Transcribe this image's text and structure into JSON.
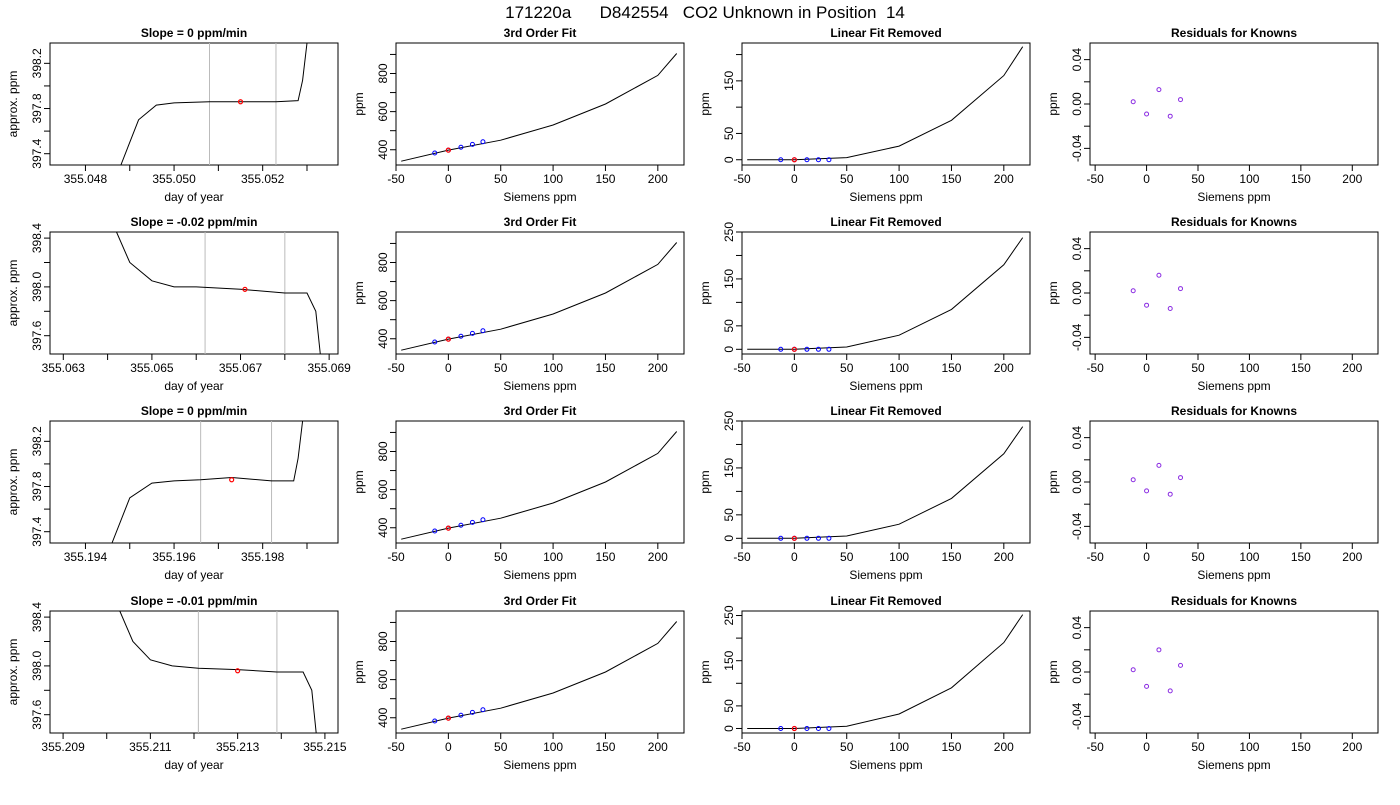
{
  "title": "171220a      D842554   CO2 Unknown in Position  14",
  "chart_data": [
    {
      "type": "line",
      "panel": "trace",
      "title": "Slope =  0  ppm/min",
      "xlabel": "day of year",
      "ylabel": "approx. ppm",
      "xlim": [
        355.0472,
        355.0537
      ],
      "ylim": [
        397.3,
        398.38
      ],
      "xticks": [
        355.048,
        355.049,
        355.05,
        355.051,
        355.052,
        355.053
      ],
      "xticklabels": [
        "355.048",
        "",
        "355.050",
        "",
        "355.052",
        ""
      ],
      "yticks": [
        397.4,
        397.6,
        397.8,
        398.0,
        398.2
      ],
      "yticklabels": [
        "397.4",
        "",
        "397.8",
        "",
        "398.2"
      ],
      "vlines": [
        355.0508,
        355.0523
      ],
      "series": [
        {
          "x": [
            355.0488,
            355.0492,
            355.0496,
            355.05,
            355.0508,
            355.0515,
            355.0523,
            355.0528,
            355.0529,
            355.053
          ],
          "y": [
            397.3,
            397.7,
            397.83,
            397.85,
            397.86,
            397.86,
            397.86,
            397.87,
            398.05,
            398.38
          ]
        }
      ],
      "marker": {
        "x": 355.0515,
        "y": 397.86,
        "color": "#ff0000"
      }
    },
    {
      "type": "line",
      "panel": "fit",
      "title": "3rd Order Fit",
      "xlabel": "Siemens ppm",
      "ylabel": "ppm",
      "xlim": [
        -50,
        225
      ],
      "ylim": [
        320,
        960
      ],
      "xticks": [
        -50,
        0,
        50,
        100,
        150,
        200
      ],
      "yticks": [
        400,
        500,
        600,
        700,
        800,
        900
      ],
      "yticklabels": [
        "400",
        "",
        "600",
        "",
        "800",
        ""
      ],
      "curve": {
        "x": [
          -45,
          0,
          50,
          100,
          150,
          200,
          218
        ],
        "y": [
          340,
          398,
          450,
          530,
          640,
          790,
          905
        ]
      },
      "points": {
        "x": [
          -13,
          0,
          12,
          23,
          33
        ],
        "y": [
          383,
          398,
          413,
          428,
          442
        ],
        "color": "#0000ff"
      },
      "marker": {
        "x": 0,
        "y": 398,
        "color": "#ff0000"
      }
    },
    {
      "type": "line",
      "panel": "linear-removed",
      "title": "Linear Fit Removed",
      "xlabel": "Siemens ppm",
      "ylabel": "ppm",
      "xlim": [
        -50,
        225
      ],
      "ylim": [
        -10,
        222
      ],
      "xticks": [
        -50,
        0,
        50,
        100,
        150,
        200
      ],
      "yticks": [
        0,
        50,
        100,
        150,
        200
      ],
      "yticklabels": [
        "0",
        "50",
        "",
        "150",
        ""
      ],
      "curve": {
        "x": [
          -45,
          0,
          50,
          100,
          150,
          200,
          218
        ],
        "y": [
          0,
          0,
          4,
          26,
          75,
          160,
          215
        ]
      },
      "points": {
        "x": [
          -13,
          0,
          12,
          23,
          33
        ],
        "y": [
          0,
          0,
          0,
          0,
          0
        ],
        "color": "#0000ff"
      },
      "marker": {
        "x": 0,
        "y": 0,
        "color": "#ff0000"
      }
    },
    {
      "type": "scatter",
      "panel": "residuals",
      "title": "Residuals for Knowns",
      "xlabel": "Siemens ppm",
      "ylabel": "ppm",
      "xlim": [
        -55,
        225
      ],
      "ylim": [
        -0.055,
        0.055
      ],
      "xticks": [
        -50,
        0,
        50,
        100,
        150,
        200
      ],
      "yticks": [
        -0.04,
        -0.02,
        0.0,
        0.02,
        0.04
      ],
      "yticklabels": [
        "-0.04",
        "",
        "0.00",
        "",
        "0.04"
      ],
      "points": {
        "x": [
          -13,
          0,
          12,
          23,
          33
        ],
        "y": [
          0.002,
          -0.009,
          0.013,
          -0.011,
          0.004
        ],
        "color": "#8a2be2"
      }
    },
    {
      "type": "line",
      "panel": "trace",
      "title": "Slope =  -0.02  ppm/min",
      "xlabel": "day of year",
      "ylabel": "approx. ppm",
      "xlim": [
        355.0627,
        355.0692
      ],
      "ylim": [
        397.45,
        398.45
      ],
      "xticks": [
        355.063,
        355.064,
        355.065,
        355.066,
        355.067,
        355.068,
        355.069
      ],
      "xticklabels": [
        "355.063",
        "",
        "355.065",
        "",
        "355.067",
        "",
        "355.069"
      ],
      "yticks": [
        397.6,
        397.8,
        398.0,
        398.2,
        398.4
      ],
      "yticklabels": [
        "397.6",
        "",
        "398.0",
        "",
        "398.4"
      ],
      "vlines": [
        355.0662,
        355.068
      ],
      "series": [
        {
          "x": [
            355.0642,
            355.0645,
            355.065,
            355.0655,
            355.066,
            355.067,
            355.068,
            355.0685,
            355.0687,
            355.0688
          ],
          "y": [
            398.45,
            398.2,
            398.05,
            398.0,
            398.0,
            397.98,
            397.95,
            397.95,
            397.8,
            397.45
          ]
        }
      ],
      "marker": {
        "x": 355.0671,
        "y": 397.98,
        "color": "#ff0000"
      }
    },
    {
      "type": "line",
      "panel": "fit",
      "title": "3rd Order Fit",
      "xlabel": "Siemens ppm",
      "ylabel": "ppm",
      "xlim": [
        -50,
        225
      ],
      "ylim": [
        320,
        960
      ],
      "xticks": [
        -50,
        0,
        50,
        100,
        150,
        200
      ],
      "yticks": [
        400,
        500,
        600,
        700,
        800,
        900
      ],
      "yticklabels": [
        "400",
        "",
        "600",
        "",
        "800",
        ""
      ],
      "curve": {
        "x": [
          -45,
          0,
          50,
          100,
          150,
          200,
          218
        ],
        "y": [
          340,
          398,
          450,
          530,
          640,
          790,
          905
        ]
      },
      "points": {
        "x": [
          -13,
          0,
          12,
          23,
          33
        ],
        "y": [
          383,
          398,
          413,
          428,
          442
        ],
        "color": "#0000ff"
      },
      "marker": {
        "x": 0,
        "y": 398,
        "color": "#ff0000"
      }
    },
    {
      "type": "line",
      "panel": "linear-removed",
      "title": "Linear Fit Removed",
      "xlabel": "Siemens ppm",
      "ylabel": "ppm",
      "xlim": [
        -50,
        225
      ],
      "ylim": [
        -10,
        250
      ],
      "xticks": [
        -50,
        0,
        50,
        100,
        150,
        200
      ],
      "yticks": [
        0,
        50,
        100,
        150,
        200,
        250
      ],
      "yticklabels": [
        "0",
        "50",
        "",
        "150",
        "",
        "250"
      ],
      "curve": {
        "x": [
          -45,
          0,
          50,
          100,
          150,
          200,
          218
        ],
        "y": [
          0,
          0,
          5,
          30,
          85,
          180,
          238
        ]
      },
      "points": {
        "x": [
          -13,
          0,
          12,
          23,
          33
        ],
        "y": [
          0,
          0,
          0,
          0,
          0
        ],
        "color": "#0000ff"
      },
      "marker": {
        "x": 0,
        "y": 0,
        "color": "#ff0000"
      }
    },
    {
      "type": "scatter",
      "panel": "residuals",
      "title": "Residuals for Knowns",
      "xlabel": "Siemens ppm",
      "ylabel": "ppm",
      "xlim": [
        -55,
        225
      ],
      "ylim": [
        -0.055,
        0.055
      ],
      "xticks": [
        -50,
        0,
        50,
        100,
        150,
        200
      ],
      "yticks": [
        -0.04,
        -0.02,
        0.0,
        0.02,
        0.04
      ],
      "yticklabels": [
        "-0.04",
        "",
        "0.00",
        "",
        "0.04"
      ],
      "points": {
        "x": [
          -13,
          0,
          12,
          23,
          33
        ],
        "y": [
          0.002,
          -0.011,
          0.016,
          -0.014,
          0.004
        ],
        "color": "#8a2be2"
      }
    },
    {
      "type": "line",
      "panel": "trace",
      "title": "Slope =  0  ppm/min",
      "xlabel": "day of year",
      "ylabel": "approx. ppm",
      "xlim": [
        355.1932,
        355.1997
      ],
      "ylim": [
        397.3,
        398.38
      ],
      "xticks": [
        355.194,
        355.195,
        355.196,
        355.197,
        355.198,
        355.199
      ],
      "xticklabels": [
        "355.194",
        "",
        "355.196",
        "",
        "355.198",
        ""
      ],
      "yticks": [
        397.4,
        397.6,
        397.8,
        398.0,
        398.2
      ],
      "yticklabels": [
        "397.4",
        "",
        "397.8",
        "",
        "398.2"
      ],
      "vlines": [
        355.1966,
        355.1982
      ],
      "series": [
        {
          "x": [
            355.1946,
            355.195,
            355.1955,
            355.196,
            355.1966,
            355.1973,
            355.1982,
            355.1987,
            355.1988,
            355.1989
          ],
          "y": [
            397.3,
            397.7,
            397.83,
            397.85,
            397.86,
            397.88,
            397.85,
            397.85,
            398.05,
            398.38
          ]
        }
      ],
      "marker": {
        "x": 355.1973,
        "y": 397.86,
        "color": "#ff0000"
      }
    },
    {
      "type": "line",
      "panel": "fit",
      "title": "3rd Order Fit",
      "xlabel": "Siemens ppm",
      "ylabel": "ppm",
      "xlim": [
        -50,
        225
      ],
      "ylim": [
        320,
        960
      ],
      "xticks": [
        -50,
        0,
        50,
        100,
        150,
        200
      ],
      "yticks": [
        400,
        500,
        600,
        700,
        800,
        900
      ],
      "yticklabels": [
        "400",
        "",
        "600",
        "",
        "800",
        ""
      ],
      "curve": {
        "x": [
          -45,
          0,
          50,
          100,
          150,
          200,
          218
        ],
        "y": [
          340,
          398,
          450,
          530,
          640,
          790,
          905
        ]
      },
      "points": {
        "x": [
          -13,
          0,
          12,
          23,
          33
        ],
        "y": [
          383,
          398,
          413,
          428,
          442
        ],
        "color": "#0000ff"
      },
      "marker": {
        "x": 0,
        "y": 398,
        "color": "#ff0000"
      }
    },
    {
      "type": "line",
      "panel": "linear-removed",
      "title": "Linear Fit Removed",
      "xlabel": "Siemens ppm",
      "ylabel": "ppm",
      "xlim": [
        -50,
        225
      ],
      "ylim": [
        -10,
        250
      ],
      "xticks": [
        -50,
        0,
        50,
        100,
        150,
        200
      ],
      "yticks": [
        0,
        50,
        100,
        150,
        200,
        250
      ],
      "yticklabels": [
        "0",
        "50",
        "",
        "150",
        "",
        "250"
      ],
      "curve": {
        "x": [
          -45,
          0,
          50,
          100,
          150,
          200,
          218
        ],
        "y": [
          0,
          0,
          5,
          30,
          85,
          180,
          238
        ]
      },
      "points": {
        "x": [
          -13,
          0,
          12,
          23,
          33
        ],
        "y": [
          0,
          0,
          0,
          0,
          0
        ],
        "color": "#0000ff"
      },
      "marker": {
        "x": 0,
        "y": 0,
        "color": "#ff0000"
      }
    },
    {
      "type": "scatter",
      "panel": "residuals",
      "title": "Residuals for Knowns",
      "xlabel": "Siemens ppm",
      "ylabel": "ppm",
      "xlim": [
        -55,
        225
      ],
      "ylim": [
        -0.055,
        0.055
      ],
      "xticks": [
        -50,
        0,
        50,
        100,
        150,
        200
      ],
      "yticks": [
        -0.04,
        -0.02,
        0.0,
        0.02,
        0.04
      ],
      "yticklabels": [
        "-0.04",
        "",
        "0.00",
        "",
        "0.04"
      ],
      "points": {
        "x": [
          -13,
          0,
          12,
          23,
          33
        ],
        "y": [
          0.002,
          -0.008,
          0.015,
          -0.011,
          0.004
        ],
        "color": "#8a2be2"
      }
    },
    {
      "type": "line",
      "panel": "trace",
      "title": "Slope =  -0.01  ppm/min",
      "xlabel": "day of year",
      "ylabel": "approx. ppm",
      "xlim": [
        355.2087,
        355.2153
      ],
      "ylim": [
        397.45,
        398.45
      ],
      "xticks": [
        355.209,
        355.21,
        355.211,
        355.212,
        355.213,
        355.214,
        355.215
      ],
      "xticklabels": [
        "355.209",
        "",
        "355.211",
        "",
        "355.213",
        "",
        "355.215"
      ],
      "yticks": [
        397.6,
        397.8,
        398.0,
        398.2,
        398.4
      ],
      "yticklabels": [
        "397.6",
        "",
        "398.0",
        "",
        "398.4"
      ],
      "vlines": [
        355.2121,
        355.2139
      ],
      "series": [
        {
          "x": [
            355.2103,
            355.2106,
            355.211,
            355.2115,
            355.2121,
            355.213,
            355.2139,
            355.2145,
            355.2147,
            355.2148
          ],
          "y": [
            398.45,
            398.2,
            398.05,
            398.0,
            397.98,
            397.97,
            397.95,
            397.95,
            397.8,
            397.45
          ]
        }
      ],
      "marker": {
        "x": 355.213,
        "y": 397.96,
        "color": "#ff0000"
      }
    },
    {
      "type": "line",
      "panel": "fit",
      "title": "3rd Order Fit",
      "xlabel": "Siemens ppm",
      "ylabel": "ppm",
      "xlim": [
        -50,
        225
      ],
      "ylim": [
        320,
        960
      ],
      "xticks": [
        -50,
        0,
        50,
        100,
        150,
        200
      ],
      "yticks": [
        400,
        500,
        600,
        700,
        800,
        900
      ],
      "yticklabels": [
        "400",
        "",
        "600",
        "",
        "800",
        ""
      ],
      "curve": {
        "x": [
          -45,
          0,
          50,
          100,
          150,
          200,
          218
        ],
        "y": [
          340,
          398,
          450,
          530,
          640,
          790,
          905
        ]
      },
      "points": {
        "x": [
          -13,
          0,
          12,
          23,
          33
        ],
        "y": [
          383,
          398,
          413,
          428,
          442
        ],
        "color": "#0000ff"
      },
      "marker": {
        "x": 0,
        "y": 398,
        "color": "#ff0000"
      }
    },
    {
      "type": "line",
      "panel": "linear-removed",
      "title": "Linear Fit Removed",
      "xlabel": "Siemens ppm",
      "ylabel": "ppm",
      "xlim": [
        -50,
        225
      ],
      "ylim": [
        -10,
        260
      ],
      "xticks": [
        -50,
        0,
        50,
        100,
        150,
        200
      ],
      "yticks": [
        0,
        50,
        100,
        150,
        200,
        250
      ],
      "yticklabels": [
        "0",
        "50",
        "",
        "150",
        "",
        "250"
      ],
      "curve": {
        "x": [
          -45,
          0,
          50,
          100,
          150,
          200,
          218
        ],
        "y": [
          0,
          0,
          5,
          32,
          90,
          190,
          252
        ]
      },
      "points": {
        "x": [
          -13,
          0,
          12,
          23,
          33
        ],
        "y": [
          0,
          0,
          0,
          0,
          0
        ],
        "color": "#0000ff"
      },
      "marker": {
        "x": 0,
        "y": 0,
        "color": "#ff0000"
      }
    },
    {
      "type": "scatter",
      "panel": "residuals",
      "title": "Residuals for Knowns",
      "xlabel": "Siemens ppm",
      "ylabel": "ppm",
      "xlim": [
        -55,
        225
      ],
      "ylim": [
        -0.055,
        0.055
      ],
      "xticks": [
        -50,
        0,
        50,
        100,
        150,
        200
      ],
      "yticks": [
        -0.04,
        -0.02,
        0.0,
        0.02,
        0.04
      ],
      "yticklabels": [
        "-0.04",
        "",
        "0.00",
        "",
        "0.04"
      ],
      "points": {
        "x": [
          -13,
          0,
          12,
          23,
          33
        ],
        "y": [
          0.002,
          -0.013,
          0.02,
          -0.017,
          0.006
        ],
        "color": "#8a2be2"
      }
    }
  ]
}
